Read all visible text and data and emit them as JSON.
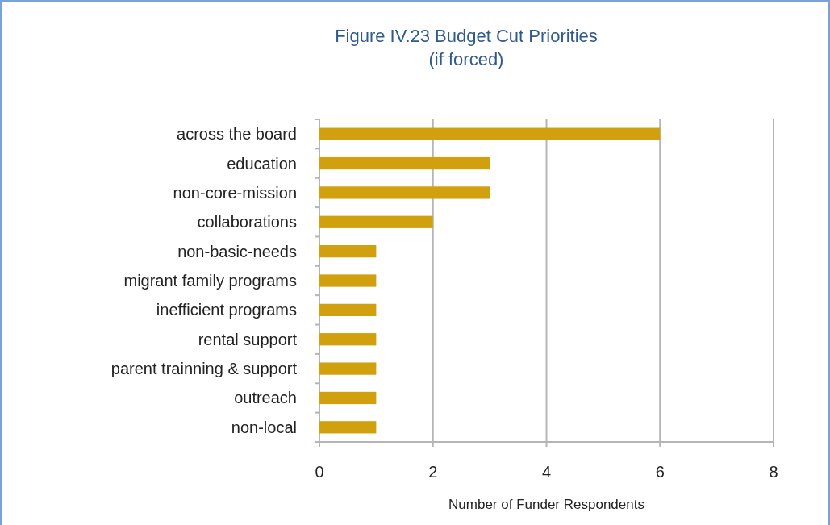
{
  "chart_data": {
    "type": "bar",
    "orientation": "horizontal",
    "title": "Figure IV.23 Budget Cut Priorities\n(if forced)",
    "xlabel": "Number of Funder Respondents",
    "categories": [
      "across the board",
      "education",
      "non-core-mission",
      "collaborations",
      "non-basic-needs",
      "migrant family programs",
      "inefficient programs",
      "rental support",
      "parent trainning & support",
      "outreach",
      "non-local"
    ],
    "values": [
      6,
      3,
      3,
      2,
      1,
      1,
      1,
      1,
      1,
      1,
      1
    ],
    "color": "#d1a00e",
    "xlim": [
      0,
      8
    ],
    "xticks": [
      0,
      2,
      4,
      6,
      8
    ],
    "grid": "x"
  }
}
